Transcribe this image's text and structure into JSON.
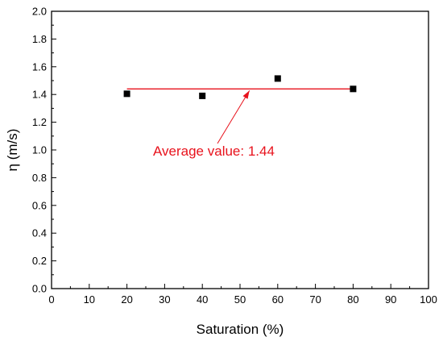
{
  "chart_data": {
    "type": "scatter",
    "title": "",
    "xlabel": "Saturation (%)",
    "ylabel": "η (m/s)",
    "xlim": [
      0,
      100
    ],
    "ylim": [
      0.0,
      2.0
    ],
    "xticks": [
      "0",
      "10",
      "20",
      "30",
      "40",
      "50",
      "60",
      "70",
      "80",
      "90",
      "100"
    ],
    "yticks": [
      "0.0",
      "0.2",
      "0.4",
      "0.6",
      "0.8",
      "1.0",
      "1.2",
      "1.4",
      "1.6",
      "1.8",
      "2.0"
    ],
    "grid": false,
    "series": [
      {
        "marker": "square",
        "color": "#000000",
        "x": [
          20,
          40,
          60,
          80
        ],
        "y": [
          1.405,
          1.39,
          1.515,
          1.44
        ]
      }
    ],
    "average_line": {
      "value": 1.44,
      "x_range": [
        20,
        80
      ],
      "color": "#e8121c"
    },
    "annotation": {
      "text": "Average value: 1.44",
      "color": "#e8121c"
    }
  }
}
